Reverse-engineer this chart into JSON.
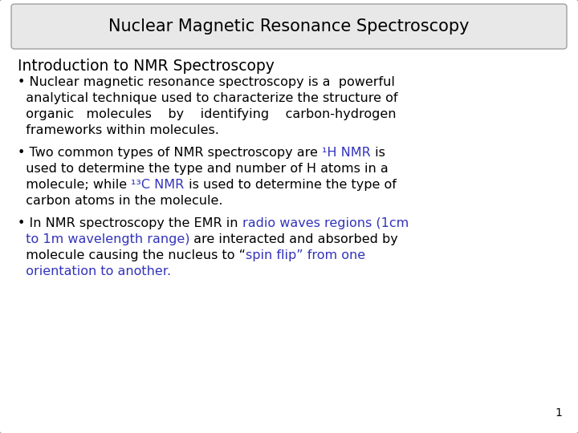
{
  "title": "Nuclear Magnetic Resonance Spectroscopy",
  "subtitle": "Introduction to NMR Spectroscopy",
  "bg_color": "#ffffff",
  "border_color": "#a0a0a0",
  "title_bg": "#e8e8e8",
  "title_color": "#000000",
  "body_color": "#000000",
  "highlight_color": "#3333bb",
  "page_number": "1",
  "font_family": "DejaVu Sans",
  "title_fontsize": 15,
  "subtitle_fontsize": 13.5,
  "body_fontsize": 11.5
}
